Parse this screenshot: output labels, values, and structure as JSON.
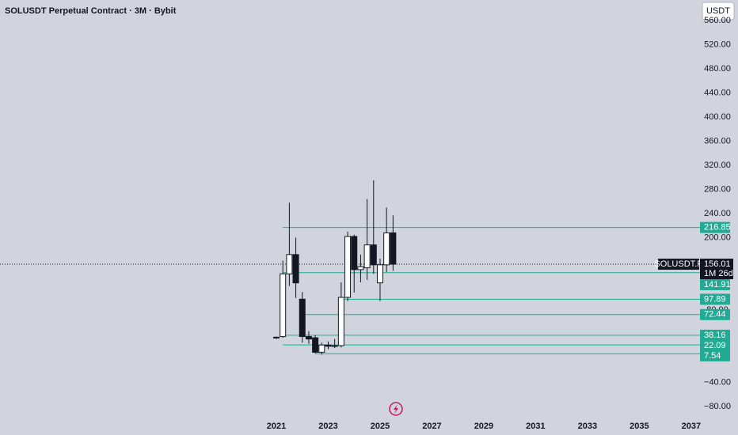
{
  "chart_data": {
    "type": "candlestick",
    "title": "SOLUSDT Perpetual Contract · 3M · Bybit",
    "currency": "USDT",
    "symbol_label": "SOLUSDT.P",
    "last_price": 156.01,
    "countdown": "1M 26d",
    "x": [
      2021.0,
      2021.25,
      2021.5,
      2021.75,
      2022.0,
      2022.25,
      2022.5,
      2022.75,
      2023.0,
      2023.25,
      2023.5,
      2023.75,
      2024.0,
      2024.25,
      2024.5,
      2024.75,
      2025.0,
      2025.25,
      2025.5
    ],
    "open": [
      34,
      36,
      140,
      172,
      98,
      36,
      34,
      10,
      22,
      20,
      21,
      101,
      202,
      147,
      150,
      188,
      125,
      155,
      208
    ],
    "high": [
      36,
      162,
      258,
      200,
      110,
      45,
      38,
      26,
      28,
      32,
      126,
      210,
      205,
      172,
      264,
      295,
      165,
      250,
      237
    ],
    "low": [
      32,
      34,
      120,
      100,
      26,
      24,
      8,
      6,
      15,
      17,
      18,
      95,
      109,
      126,
      130,
      140,
      95,
      143,
      145
    ],
    "close": [
      35,
      140,
      172,
      125,
      36,
      32,
      10,
      22,
      20,
      21,
      101,
      202,
      147,
      152,
      188,
      155,
      155,
      208,
      156.01
    ],
    "levels": [
      216.85,
      141.91,
      97.89,
      72.44,
      38.16,
      22.09,
      7.54
    ],
    "level_color": "#22ab94",
    "xlim": [
      2010.34,
      2037.34
    ],
    "xticks": [
      2021,
      2023,
      2025,
      2027,
      2029,
      2031,
      2033,
      2035,
      2037
    ],
    "ylim": [
      -97.05,
      594.1
    ],
    "yticks": [
      {
        "value": 560,
        "label": "560.00"
      },
      {
        "value": 520,
        "label": "520.00"
      },
      {
        "value": 480,
        "label": "480.00"
      },
      {
        "value": 440,
        "label": "440.00"
      },
      {
        "value": 400,
        "label": "400.00"
      },
      {
        "value": 360,
        "label": "360.00"
      },
      {
        "value": 320,
        "label": "320.00"
      },
      {
        "value": 280,
        "label": "280.00"
      },
      {
        "value": 240,
        "label": "240.00"
      },
      {
        "value": 200,
        "label": "200.00"
      },
      {
        "value": 80,
        "label": "80.00"
      },
      {
        "value": -40,
        "label": "−40.00"
      },
      {
        "value": -80,
        "label": "−80.00"
      }
    ]
  }
}
